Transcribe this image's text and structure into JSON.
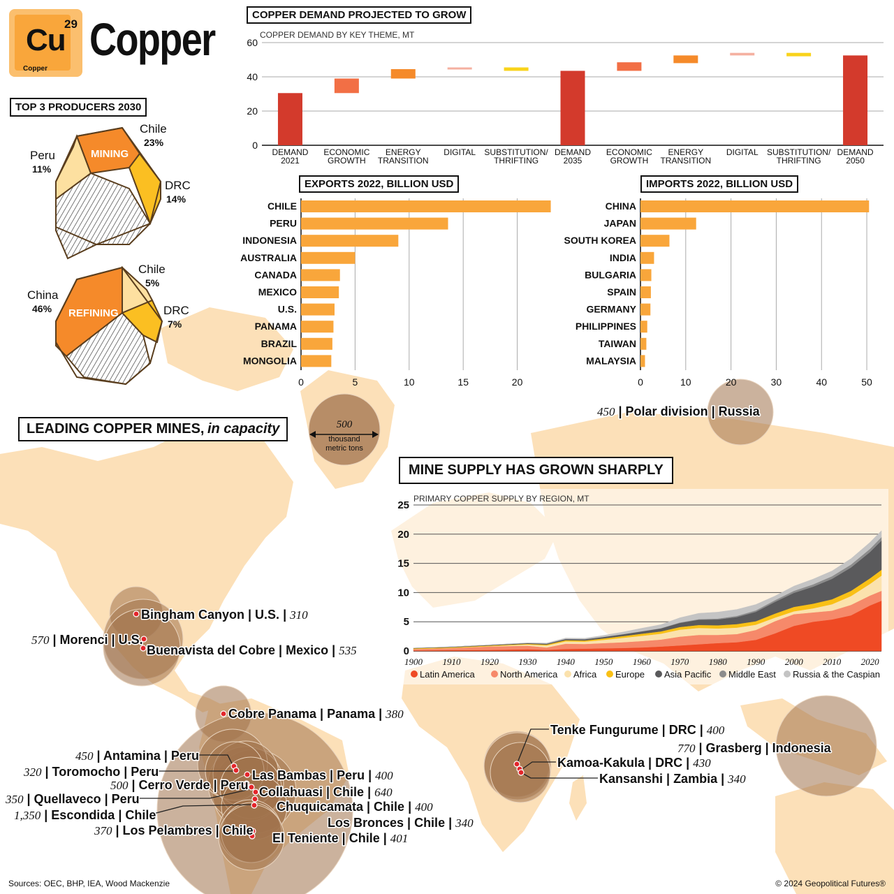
{
  "header": {
    "symbol": "Cu",
    "atomic_number": "29",
    "element_name": "Copper",
    "title": "Copper"
  },
  "producers": {
    "title": "TOP 3 PRODUCERS 2030",
    "mining": {
      "label": "MINING",
      "shares": [
        {
          "country": "Chile",
          "pct": "23%",
          "value": 23
        },
        {
          "country": "DRC",
          "pct": "14%",
          "value": 14
        },
        {
          "country": "Peru",
          "pct": "11%",
          "value": 11
        }
      ]
    },
    "refining": {
      "label": "REFINING",
      "shares": [
        {
          "country": "China",
          "pct": "46%",
          "value": 46
        },
        {
          "country": "Chile",
          "pct": "5%",
          "value": 5
        },
        {
          "country": "DRC",
          "pct": "7%",
          "value": 7
        }
      ]
    }
  },
  "legend_bubble": {
    "value": "500",
    "unit_line1": "thousand",
    "unit_line2": "metric tons"
  },
  "mines_title": {
    "main": "LEADING COPPER MINES,",
    "sub": "in capacity"
  },
  "supply_title": "MINE SUPPLY HAS GROWN SHARPLY",
  "mines": [
    {
      "name": "Polar division",
      "country": "Russia",
      "capacity": "450"
    },
    {
      "name": "Bingham Canyon",
      "country": "U.S.",
      "capacity": "310"
    },
    {
      "name": "Morenci",
      "country": "U.S.",
      "capacity": "570"
    },
    {
      "name": "Buenavista del Cobre",
      "country": "Mexico",
      "capacity": "535"
    },
    {
      "name": "Cobre Panama",
      "country": "Panama",
      "capacity": "380"
    },
    {
      "name": "Antamina",
      "country": "Peru",
      "capacity": "450"
    },
    {
      "name": "Toromocho",
      "country": "Peru",
      "capacity": "320"
    },
    {
      "name": "Las Bambas",
      "country": "Peru",
      "capacity": "400"
    },
    {
      "name": "Cerro Verde",
      "country": "Peru",
      "capacity": "500"
    },
    {
      "name": "Collahuasi",
      "country": "Chile",
      "capacity": "640"
    },
    {
      "name": "Quellaveco",
      "country": "Peru",
      "capacity": "350"
    },
    {
      "name": "Chuquicamata",
      "country": "Chile",
      "capacity": "400"
    },
    {
      "name": "Escondida",
      "country": "Chile",
      "capacity": "1,350"
    },
    {
      "name": "Los Bronces",
      "country": "Chile",
      "capacity": "340"
    },
    {
      "name": "Los Pelambres",
      "country": "Chile",
      "capacity": "370"
    },
    {
      "name": "El Teniente",
      "country": "Chile",
      "capacity": "401"
    },
    {
      "name": "Tenke Fungurume",
      "country": "DRC",
      "capacity": "400"
    },
    {
      "name": "Kamoa-Kakula",
      "country": "DRC",
      "capacity": "430"
    },
    {
      "name": "Kansanshi",
      "country": "Zambia",
      "capacity": "340"
    },
    {
      "name": "Grasberg",
      "country": "Indonesia",
      "capacity": "770"
    }
  ],
  "footer": {
    "sources": "Sources: OEC, BHP, IEA, Wood Mackenzie",
    "copyright": "© 2024 Geopolitical Futures®"
  },
  "colors": {
    "demand_total": "#d33a2c",
    "bar_orange": "#f9a63b",
    "economic_growth": "#f26f45",
    "energy_transition": "#f58a2a",
    "digital": "#f5b0a0",
    "substitution": "#f9d31b",
    "map_land": "#fce0b8",
    "bubble": "#a0724c"
  },
  "chart_data": [
    {
      "type": "bar",
      "subtype": "waterfall",
      "title": "COPPER DEMAND PROJECTED TO GROW",
      "subtitle": "COPPER DEMAND BY KEY THEME, MT",
      "ylim": [
        0,
        60
      ],
      "yticks": [
        0,
        20,
        40,
        60
      ],
      "grid": true,
      "categories": [
        "DEMAND|2021",
        "ECONOMIC|GROWTH",
        "ENERGY|TRANSITION",
        "DIGITAL",
        "SUBSTITUTION/|THRIFTING",
        "DEMAND|2035",
        "ECONOMIC|GROWTH",
        "ENERGY|TRANSITION",
        "DIGITAL",
        "SUBSTITUTION/|THRIFTING",
        "DEMAND|2050"
      ],
      "bars": [
        {
          "kind": "total",
          "low": 0,
          "high": 30.5
        },
        {
          "kind": "economic_growth",
          "low": 30.5,
          "high": 39
        },
        {
          "kind": "energy_transition",
          "low": 39,
          "high": 44.5
        },
        {
          "kind": "digital",
          "low": 44.5,
          "high": 45.5
        },
        {
          "kind": "substitution",
          "low": 43.5,
          "high": 45.5
        },
        {
          "kind": "total",
          "low": 0,
          "high": 43.5
        },
        {
          "kind": "economic_growth",
          "low": 43.5,
          "high": 48.5
        },
        {
          "kind": "energy_transition",
          "low": 48,
          "high": 52.5
        },
        {
          "kind": "digital",
          "low": 52.5,
          "high": 54
        },
        {
          "kind": "substitution",
          "low": 52,
          "high": 54
        },
        {
          "kind": "total",
          "low": 0,
          "high": 52.5
        }
      ]
    },
    {
      "type": "bar",
      "orientation": "horizontal",
      "title": "EXPORTS 2022, BILLION USD",
      "categories": [
        "CHILE",
        "PERU",
        "INDONESIA",
        "AUSTRALIA",
        "CANADA",
        "MEXICO",
        "U.S.",
        "PANAMA",
        "BRAZIL",
        "MONGOLIA"
      ],
      "values": [
        23.1,
        13.6,
        9.0,
        5.0,
        3.6,
        3.5,
        3.1,
        3.0,
        2.9,
        2.8
      ],
      "xlim": [
        0,
        25
      ],
      "xticks": [
        0,
        5,
        10,
        15,
        20
      ],
      "grid": true
    },
    {
      "type": "bar",
      "orientation": "horizontal",
      "title": "IMPORTS 2022, BILLION USD",
      "categories": [
        "CHINA",
        "JAPAN",
        "SOUTH KOREA",
        "INDIA",
        "BULGARIA",
        "SPAIN",
        "GERMANY",
        "PHILIPPINES",
        "TAIWAN",
        "MALAYSIA"
      ],
      "values": [
        50.5,
        12.3,
        6.4,
        3.0,
        2.4,
        2.3,
        2.2,
        1.5,
        1.3,
        1.0
      ],
      "xlim": [
        0,
        52
      ],
      "xticks": [
        0,
        10,
        20,
        30,
        40,
        50
      ],
      "grid": true
    },
    {
      "type": "area",
      "stacked": true,
      "subtitle": "PRIMARY COPPER SUPPLY BY REGION, MT",
      "x": [
        1900,
        1910,
        1920,
        1930,
        1935,
        1940,
        1945,
        1950,
        1955,
        1960,
        1965,
        1970,
        1975,
        1980,
        1985,
        1990,
        1995,
        2000,
        2005,
        2010,
        2015,
        2020,
        2023
      ],
      "xticks": [
        1900,
        1910,
        1920,
        1930,
        1940,
        1950,
        1960,
        1970,
        1980,
        1990,
        2000,
        2010,
        2020
      ],
      "ylim": [
        0,
        25
      ],
      "yticks": [
        0,
        5,
        10,
        15,
        20,
        25
      ],
      "grid": true,
      "legend_position": "bottom",
      "series": [
        {
          "name": "Latin America",
          "color": "#ef4a24",
          "values": [
            0.08,
            0.14,
            0.18,
            0.3,
            0.2,
            0.35,
            0.4,
            0.45,
            0.5,
            0.6,
            0.75,
            0.95,
            1.15,
            1.35,
            1.5,
            1.9,
            3.0,
            4.3,
            5.0,
            5.4,
            6.1,
            7.8,
            8.6
          ]
        },
        {
          "name": "North America",
          "color": "#f6896a",
          "values": [
            0.25,
            0.35,
            0.6,
            0.6,
            0.4,
            0.9,
            0.8,
            0.9,
            1.0,
            1.1,
            1.2,
            1.5,
            1.6,
            1.4,
            1.4,
            1.7,
            2.1,
            2.0,
            1.6,
            1.5,
            1.8,
            1.7,
            1.7
          ]
        },
        {
          "name": "Africa",
          "color": "#fbe2ad",
          "values": [
            0.02,
            0.03,
            0.05,
            0.2,
            0.35,
            0.4,
            0.4,
            0.55,
            0.75,
            0.9,
            1.0,
            1.2,
            1.2,
            1.1,
            1.1,
            0.9,
            0.6,
            0.5,
            0.7,
            1.1,
            1.5,
            2.0,
            2.6
          ]
        },
        {
          "name": "Europe",
          "color": "#f9c015",
          "values": [
            0.1,
            0.1,
            0.1,
            0.12,
            0.15,
            0.2,
            0.2,
            0.25,
            0.3,
            0.35,
            0.4,
            0.45,
            0.5,
            0.55,
            0.6,
            0.6,
            0.7,
            0.75,
            0.8,
            0.85,
            0.9,
            0.95,
            1.0
          ]
        },
        {
          "name": "Asia Pacific",
          "color": "#5a5a5c",
          "values": [
            0.05,
            0.08,
            0.1,
            0.12,
            0.15,
            0.2,
            0.2,
            0.25,
            0.3,
            0.4,
            0.5,
            0.7,
            0.9,
            1.0,
            1.2,
            1.6,
            2.0,
            2.4,
            2.9,
            3.5,
            4.0,
            4.5,
            5.0
          ]
        },
        {
          "name": "Middle East",
          "color": "#8c8c8c",
          "values": [
            0.0,
            0.0,
            0.0,
            0.01,
            0.01,
            0.01,
            0.02,
            0.02,
            0.03,
            0.04,
            0.05,
            0.08,
            0.1,
            0.15,
            0.2,
            0.25,
            0.3,
            0.35,
            0.4,
            0.45,
            0.5,
            0.55,
            0.6
          ]
        },
        {
          "name": "Russia & the Caspian",
          "color": "#c4c4c4",
          "values": [
            0.01,
            0.02,
            0.01,
            0.05,
            0.1,
            0.15,
            0.15,
            0.25,
            0.35,
            0.5,
            0.6,
            0.8,
            1.0,
            1.1,
            1.1,
            1.0,
            0.7,
            0.8,
            0.9,
            0.9,
            1.0,
            1.1,
            1.1
          ]
        }
      ]
    }
  ]
}
